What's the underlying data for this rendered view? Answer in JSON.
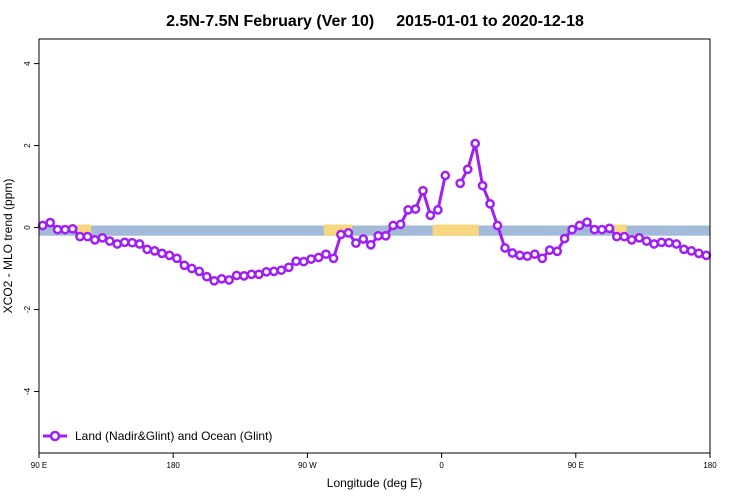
{
  "chart_data": {
    "type": "line",
    "title_left": "2.5N-7.5N February (Ver 10)",
    "title_right": "2015-01-01 to 2020-12-18",
    "xlabel": "Longitude (deg E)",
    "ylabel": "XCO2 - MLO trend (ppm)",
    "xlim": [
      90,
      540
    ],
    "ylim": [
      -5.5,
      4.6
    ],
    "x_ticks": [
      {
        "value": 90,
        "label": "90 E"
      },
      {
        "value": 180,
        "label": "180"
      },
      {
        "value": 270,
        "label": "90 W"
      },
      {
        "value": 360,
        "label": "0"
      },
      {
        "value": 450,
        "label": "90 E"
      },
      {
        "value": 540,
        "label": "180"
      }
    ],
    "y_ticks": [
      {
        "value": -4,
        "label": "-4"
      },
      {
        "value": -2,
        "label": "-2"
      },
      {
        "value": 0,
        "label": "0"
      },
      {
        "value": 2,
        "label": "2"
      },
      {
        "value": 4,
        "label": "4"
      }
    ],
    "background_band": {
      "ocean_color": "#a3bad8",
      "land_color": "#f8d780",
      "y_range": [
        -0.2,
        0.05
      ],
      "land_ranges": [
        [
          116,
          125
        ],
        [
          281,
          300
        ],
        [
          354,
          385
        ],
        [
          476,
          484
        ]
      ]
    },
    "series": [
      {
        "name": "Land (Nadir&Glint) and Ocean (Glint)",
        "color": "#a020f0",
        "segments": [
          [
            [
              92.5,
              0.05
            ],
            [
              97.5,
              0.12
            ],
            [
              102.5,
              -0.05
            ],
            [
              107.5,
              -0.05
            ],
            [
              112.5,
              -0.03
            ],
            [
              117.5,
              -0.22
            ],
            [
              122.5,
              -0.22
            ],
            [
              127.5,
              -0.3
            ],
            [
              132.5,
              -0.25
            ],
            [
              137.5,
              -0.33
            ],
            [
              142.5,
              -0.4
            ],
            [
              147.5,
              -0.36
            ],
            [
              152.5,
              -0.37
            ],
            [
              157.5,
              -0.4
            ],
            [
              162.5,
              -0.53
            ],
            [
              167.5,
              -0.57
            ],
            [
              172.5,
              -0.63
            ],
            [
              177.5,
              -0.68
            ],
            [
              182.5,
              -0.75
            ],
            [
              187.5,
              -0.92
            ],
            [
              192.5,
              -1.0
            ],
            [
              197.5,
              -1.07
            ],
            [
              202.5,
              -1.2
            ],
            [
              207.5,
              -1.3
            ],
            [
              212.5,
              -1.25
            ],
            [
              217.5,
              -1.28
            ],
            [
              222.5,
              -1.17
            ],
            [
              227.5,
              -1.18
            ],
            [
              232.5,
              -1.14
            ],
            [
              237.5,
              -1.14
            ],
            [
              242.5,
              -1.08
            ],
            [
              247.5,
              -1.07
            ],
            [
              252.5,
              -1.04
            ],
            [
              257.5,
              -0.97
            ],
            [
              262.5,
              -0.82
            ],
            [
              267.5,
              -0.83
            ],
            [
              272.5,
              -0.77
            ],
            [
              277.5,
              -0.73
            ],
            [
              282.5,
              -0.65
            ],
            [
              287.5,
              -0.75
            ],
            [
              292.5,
              -0.17
            ],
            [
              297.5,
              -0.13
            ],
            [
              302.5,
              -0.38
            ],
            [
              307.5,
              -0.28
            ],
            [
              312.5,
              -0.42
            ],
            [
              317.5,
              -0.2
            ],
            [
              322.5,
              -0.2
            ],
            [
              327.5,
              0.05
            ],
            [
              332.5,
              0.08
            ],
            [
              337.5,
              0.43
            ],
            [
              342.5,
              0.45
            ],
            [
              347.5,
              0.9
            ],
            [
              352.5,
              0.3
            ],
            [
              357.5,
              0.43
            ],
            [
              362.5,
              1.27
            ]
          ],
          [
            [
              372.5,
              1.08
            ],
            [
              377.5,
              1.42
            ],
            [
              382.5,
              2.05
            ],
            [
              387.5,
              1.02
            ],
            [
              392.5,
              0.58
            ],
            [
              397.5,
              0.05
            ],
            [
              402.5,
              -0.5
            ],
            [
              407.5,
              -0.62
            ],
            [
              412.5,
              -0.68
            ],
            [
              417.5,
              -0.7
            ],
            [
              422.5,
              -0.65
            ],
            [
              427.5,
              -0.75
            ],
            [
              432.5,
              -0.55
            ],
            [
              437.5,
              -0.58
            ],
            [
              442.5,
              -0.27
            ],
            [
              447.5,
              -0.05
            ],
            [
              452.5,
              0.05
            ],
            [
              457.5,
              0.13
            ],
            [
              462.5,
              -0.05
            ],
            [
              467.5,
              -0.05
            ],
            [
              472.5,
              -0.02
            ],
            [
              477.5,
              -0.22
            ],
            [
              482.5,
              -0.22
            ],
            [
              487.5,
              -0.3
            ],
            [
              492.5,
              -0.25
            ],
            [
              497.5,
              -0.33
            ],
            [
              502.5,
              -0.4
            ],
            [
              507.5,
              -0.36
            ],
            [
              512.5,
              -0.37
            ],
            [
              517.5,
              -0.4
            ],
            [
              522.5,
              -0.53
            ],
            [
              527.5,
              -0.57
            ],
            [
              532.5,
              -0.63
            ],
            [
              537.5,
              -0.68
            ]
          ]
        ]
      }
    ],
    "legend_position": "bottom-left",
    "grid": false
  }
}
